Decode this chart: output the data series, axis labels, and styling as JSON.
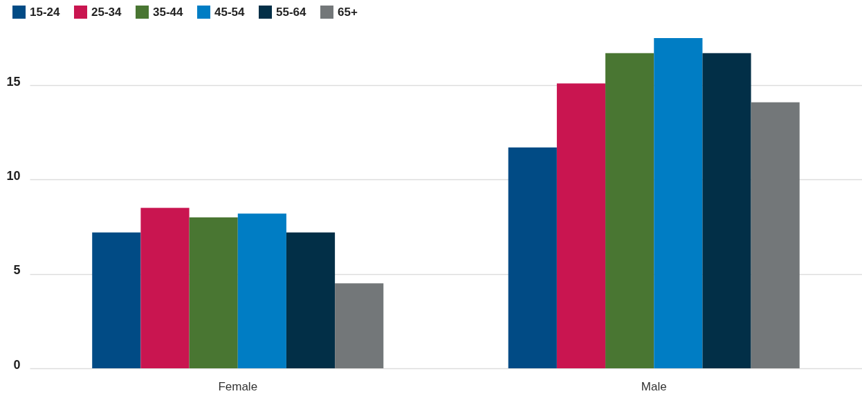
{
  "chart_data": {
    "type": "bar",
    "categories": [
      "Female",
      "Male"
    ],
    "series": [
      {
        "name": "15-24",
        "color": "#014b85",
        "values": [
          7.2,
          11.7
        ]
      },
      {
        "name": "25-34",
        "color": "#c91550",
        "values": [
          8.5,
          15.1
        ]
      },
      {
        "name": "35-44",
        "color": "#497632",
        "values": [
          8.0,
          16.7
        ]
      },
      {
        "name": "45-54",
        "color": "#007dc4",
        "values": [
          8.2,
          17.5
        ]
      },
      {
        "name": "55-64",
        "color": "#022f47",
        "values": [
          7.2,
          16.7
        ]
      },
      {
        "name": "65+",
        "color": "#737779",
        "values": [
          4.5,
          14.1
        ]
      }
    ],
    "ylim": [
      0,
      17.5
    ],
    "yticks": [
      0,
      5,
      10,
      15
    ],
    "grid": "y",
    "legend": "top left"
  }
}
